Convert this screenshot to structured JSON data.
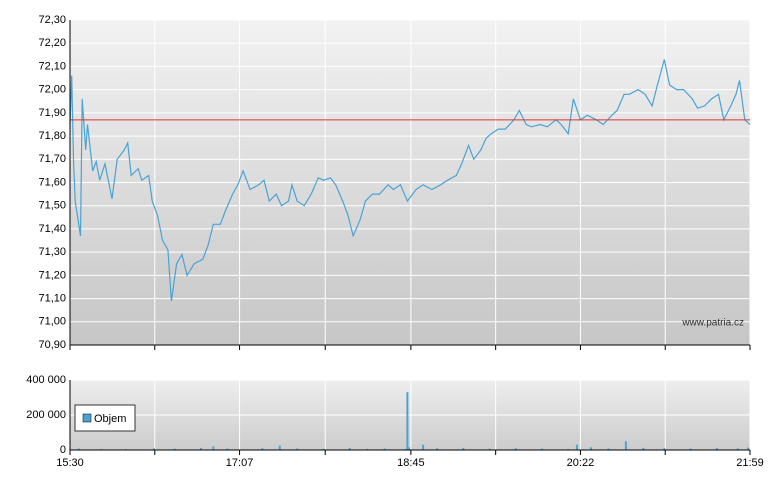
{
  "chart_data": [
    {
      "type": "line",
      "x": [
        930,
        931,
        932,
        933,
        936,
        937,
        939,
        940,
        943,
        945,
        947,
        950,
        954,
        957,
        961,
        963,
        965,
        969,
        971,
        975,
        977,
        980,
        983,
        986,
        988,
        991,
        994,
        997,
        1001,
        1006,
        1009,
        1012,
        1016,
        1019,
        1023,
        1026,
        1029,
        1033,
        1038,
        1041,
        1044,
        1048,
        1051,
        1055,
        1057,
        1060,
        1064,
        1068,
        1072,
        1075,
        1079,
        1082,
        1086,
        1089,
        1092,
        1096,
        1099,
        1103,
        1107,
        1112,
        1115,
        1119,
        1123,
        1128,
        1132,
        1137,
        1142,
        1146,
        1151,
        1154,
        1158,
        1161,
        1165,
        1168,
        1171,
        1175,
        1179,
        1184,
        1187,
        1191,
        1194,
        1199,
        1203,
        1208,
        1211,
        1215,
        1218,
        1222,
        1226,
        1231,
        1235,
        1240,
        1243,
        1247,
        1250,
        1255,
        1259,
        1263,
        1266,
        1270,
        1273,
        1277,
        1281,
        1286,
        1289,
        1293,
        1297,
        1301,
        1304,
        1308,
        1311,
        1313,
        1316,
        1319
      ],
      "series": [
        {
          "color": "#4aa3d4",
          "values": [
            71.85,
            72.06,
            71.7,
            71.52,
            71.37,
            71.96,
            71.74,
            71.85,
            71.65,
            71.69,
            71.61,
            71.68,
            71.53,
            71.7,
            71.74,
            71.77,
            71.63,
            71.66,
            71.61,
            71.63,
            71.52,
            71.46,
            71.35,
            71.31,
            71.09,
            71.25,
            71.29,
            71.2,
            71.25,
            71.27,
            71.33,
            71.42,
            71.42,
            71.48,
            71.55,
            71.59,
            71.65,
            71.57,
            71.59,
            71.61,
            71.52,
            71.55,
            71.5,
            71.52,
            71.59,
            71.52,
            71.5,
            71.55,
            71.62,
            71.61,
            71.62,
            71.59,
            71.52,
            71.46,
            71.37,
            71.44,
            71.52,
            71.55,
            71.55,
            71.59,
            71.57,
            71.59,
            71.52,
            71.57,
            71.59,
            71.57,
            71.59,
            71.61,
            71.63,
            71.68,
            71.76,
            71.7,
            71.74,
            71.79,
            71.81,
            71.83,
            71.83,
            71.87,
            71.91,
            71.85,
            71.84,
            71.85,
            71.84,
            71.87,
            71.85,
            71.81,
            71.96,
            71.87,
            71.89,
            71.87,
            71.85,
            71.89,
            71.91,
            71.98,
            71.98,
            72.0,
            71.98,
            71.93,
            72.02,
            72.13,
            72.02,
            72.0,
            72.0,
            71.96,
            71.92,
            71.93,
            71.96,
            71.98,
            71.87,
            71.93,
            71.98,
            72.04,
            71.87,
            71.85
          ]
        }
      ],
      "reference_line": {
        "value": 71.87,
        "color": "#e03030"
      },
      "xlim": [
        930,
        1319
      ],
      "ylim": [
        70.9,
        72.3
      ],
      "yticks": [
        {
          "value": 70.9,
          "label": "70,90"
        },
        {
          "value": 71.0,
          "label": "71,00"
        },
        {
          "value": 71.1,
          "label": "71,10"
        },
        {
          "value": 71.2,
          "label": "71,20"
        },
        {
          "value": 71.3,
          "label": "71,30"
        },
        {
          "value": 71.4,
          "label": "71,40"
        },
        {
          "value": 71.5,
          "label": "71,50"
        },
        {
          "value": 71.6,
          "label": "71,60"
        },
        {
          "value": 71.7,
          "label": "71,70"
        },
        {
          "value": 71.8,
          "label": "71,80"
        },
        {
          "value": 71.9,
          "label": "71,90"
        },
        {
          "value": 72.0,
          "label": "72,00"
        },
        {
          "value": 72.1,
          "label": "72,10"
        },
        {
          "value": 72.2,
          "label": "72,20"
        },
        {
          "value": 72.3,
          "label": "72,30"
        }
      ],
      "grid": true,
      "annotation": "www.patria.cz"
    },
    {
      "type": "bar",
      "x": [
        935,
        948,
        962,
        978,
        990,
        1005,
        1012,
        1020,
        1040,
        1050,
        1060,
        1075,
        1090,
        1100,
        1110,
        1122,
        1123,
        1124,
        1132,
        1140,
        1155,
        1170,
        1185,
        1200,
        1215,
        1220,
        1228,
        1238,
        1248,
        1258,
        1270,
        1285,
        1300,
        1312,
        1318
      ],
      "series": [
        {
          "name": "Objem",
          "color": "#4aa3d4",
          "values": [
            8000,
            6000,
            5000,
            9000,
            7000,
            12000,
            20000,
            8000,
            10000,
            25000,
            9000,
            7000,
            11000,
            6000,
            8000,
            5000,
            330000,
            15000,
            30000,
            9000,
            12000,
            7000,
            10000,
            8000,
            6000,
            30000,
            15000,
            9000,
            50000,
            12000,
            10000,
            8000,
            11000,
            9000,
            14000
          ]
        }
      ],
      "xlim": [
        930,
        1319
      ],
      "ylim": [
        0,
        400000
      ],
      "yticks": [
        0,
        {
          "value": 200000,
          "label": "200 000"
        },
        {
          "value": 400000,
          "label": "400 000"
        }
      ],
      "xticks": [
        {
          "value": 930,
          "label": "15:30"
        },
        {
          "value": 1027,
          "label": "17:07"
        },
        {
          "value": 1125,
          "label": "18:45"
        },
        {
          "value": 1222,
          "label": "20:22"
        },
        {
          "value": 1319,
          "label": "21:59"
        }
      ],
      "legend": "top-left",
      "grid": true
    }
  ]
}
